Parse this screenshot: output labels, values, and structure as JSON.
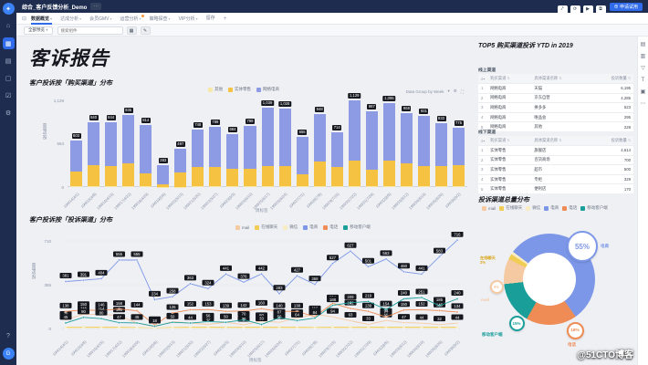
{
  "app": {
    "sidebar": {
      "items": [
        {
          "name": "logo",
          "glyph": "✦",
          "type": "logo"
        },
        {
          "name": "home",
          "glyph": "⌂"
        },
        {
          "name": "workspace",
          "glyph": "▦",
          "active": true
        },
        {
          "name": "documents",
          "glyph": "▤"
        },
        {
          "name": "datasets",
          "glyph": "▢"
        },
        {
          "name": "tasks",
          "glyph": "☑"
        },
        {
          "name": "settings",
          "glyph": "⚙"
        }
      ],
      "bottom": [
        {
          "name": "help",
          "glyph": "?"
        },
        {
          "name": "avatar",
          "glyph": "G",
          "type": "avatar"
        }
      ]
    },
    "header": {
      "title": "综合_客户反馈分析_Demo",
      "more_label": "⋯",
      "actions": [
        {
          "name": "share",
          "glyph": "⤤"
        },
        {
          "name": "refresh",
          "glyph": "⟳"
        },
        {
          "name": "present",
          "glyph": "▶"
        },
        {
          "name": "export",
          "glyph": "⧉"
        }
      ],
      "edit_button": {
        "icon": "⊕",
        "label": "申请试用"
      }
    },
    "tabs": {
      "menu_icon": "⊟",
      "items": [
        {
          "label": "数据概览",
          "active": true,
          "caret": "▾"
        },
        {
          "label": "达成分析",
          "caret": "▾"
        },
        {
          "label": "会员GMV",
          "caret": "▾"
        },
        {
          "label": "运营分析",
          "caret": "▾",
          "dot": true
        },
        {
          "label": "策略探查",
          "caret": "▾"
        },
        {
          "label": "VIP分析",
          "caret": "▾"
        },
        {
          "label": "留存"
        }
      ],
      "add_label": "+"
    },
    "filter_bar": {
      "scope_label": "全部预览",
      "scope_caret": "▾",
      "search_placeholder": "搜索组件",
      "calendar_icon": "▦",
      "edit_icon": "✎"
    }
  },
  "page": {
    "title": "客诉报告"
  },
  "watermark": {
    "text": "@51CTO博客"
  },
  "top5": {
    "title": "TOP5 购买渠道投诉 YTD in 2019",
    "online_label": "线上渠道",
    "offline_label": "线下渠道",
    "search_icon": "⌕",
    "sort_icon": "⇅",
    "columns": [
      "购买渠道",
      "具体渠道名称",
      "投诉数量"
    ],
    "online_rows": [
      [
        "1",
        "网络电商",
        "天猫",
        "6,195"
      ],
      [
        "2",
        "网络电商",
        "京东自营",
        "4,285"
      ],
      [
        "3",
        "网络电商",
        "拼多多",
        "523"
      ],
      [
        "4",
        "网络电商",
        "唯品会",
        "295"
      ],
      [
        "5",
        "网络电商",
        "其他",
        "228"
      ]
    ],
    "offline_rows": [
      [
        "1",
        "实体零售",
        "旗舰店",
        "4,614"
      ],
      [
        "2",
        "实体零售",
        "百货商场",
        "700"
      ],
      [
        "3",
        "实体零售",
        "超市",
        "500"
      ],
      [
        "4",
        "实体零售",
        "专柜",
        "329"
      ],
      [
        "5",
        "实体零售",
        "便利店",
        "170"
      ]
    ]
  },
  "chart_data": [
    {
      "type": "bar",
      "stacked": true,
      "title": "客户投诉按「购买渠道」分布",
      "xlabel": "周标签",
      "ylabel": "投诉数量",
      "ylim": [
        0,
        1129
      ],
      "yticks": [
        0,
        564,
        1129
      ],
      "grid": false,
      "legend_position": "top-center",
      "controls": {
        "group_label": "Data Group by Week",
        "caret": "▾",
        "settings_icon": "⚙",
        "expand_icon": "⛶"
      },
      "categories": [
        "19W14(4/1)",
        "19W15(4/8)",
        "19W16(4/15)",
        "19W17(4/22)",
        "19W18(4/29)",
        "19W19(5/6)",
        "19W20(5/13)",
        "19W21(5/20)",
        "19W22(5/27)",
        "19W23(6/3)",
        "19W24(6/10)",
        "19W25(6/17)",
        "19W26(6/24)",
        "19W27(7/1)",
        "19W28(7/8)",
        "19W29(7/15)",
        "19W30(7/22)",
        "19W31(7/29)",
        "19W32(8/5)",
        "19W33(8/12)",
        "19W34(8/19)",
        "19W35(8/26)",
        "19W36(9/2)"
      ],
      "series": [
        {
          "name": "其他",
          "color": "#f7e8a9",
          "values": [
            8,
            8,
            8,
            8,
            8,
            5,
            6,
            8,
            8,
            8,
            8,
            9,
            9,
            7,
            8,
            8,
            9,
            9,
            9,
            9,
            8,
            8,
            8
          ]
        },
        {
          "name": "实体零售",
          "color": "#f5c242",
          "values": [
            195,
            280,
            262,
            300,
            175,
            30,
            190,
            255,
            250,
            230,
            230,
            270,
            265,
            160,
            320,
            255,
            330,
            215,
            330,
            300,
            270,
            265,
            280
          ]
        },
        {
          "name": "网络电商",
          "color": "#8d9ae4",
          "values": [
            400,
            552,
            574,
            627,
            631,
            248,
            301,
            485,
            531,
            446,
            561,
            760,
            754,
            488,
            620,
            451,
            790,
            763,
            756,
            659,
            653,
            560,
            487
          ]
        }
      ],
      "totals": [
        603,
        840,
        844,
        935,
        814,
        283,
        497,
        748,
        789,
        684,
        799,
        1039,
        1028,
        655,
        948,
        714,
        1129,
        987,
        1095,
        968,
        931,
        833,
        775
      ]
    },
    {
      "type": "line",
      "title": "客户投诉按「投诉渠道」分布",
      "xlabel": "周标签",
      "ylabel": "投诉数量",
      "ylim": [
        0,
        716
      ],
      "yticks": [
        0,
        355,
        710
      ],
      "legend_position": "top-right",
      "categories": [
        "19W14(4/1)",
        "19W15(4/8)",
        "19W16(4/15)",
        "19W17(4/22)",
        "19W18(4/29)",
        "19W19(5/6)",
        "19W20(5/13)",
        "19W21(5/20)",
        "19W22(5/27)",
        "19W23(6/3)",
        "19W24(6/10)",
        "19W25(6/17)",
        "19W26(6/24)",
        "19W27(7/1)",
        "19W28(7/8)",
        "19W29(7/15)",
        "19W30(7/22)",
        "19W31(7/29)",
        "19W32(8/5)",
        "19W33(8/12)",
        "19W34(8/19)",
        "19W35(8/26)",
        "19W36(9/2)"
      ],
      "series": [
        {
          "name": "mail",
          "color": "#f5c9a2",
          "labels": true,
          "values": [
            70,
            116,
            114,
            105,
            45,
            15,
            56,
            44,
            33,
            50,
            30,
            60,
            50,
            85,
            116,
            94,
            63,
            33,
            65,
            47,
            44,
            32,
            44
          ]
        },
        {
          "name": "在线聊天",
          "color": "#f1cd55",
          "labels": false,
          "values": [
            10,
            12,
            11,
            10,
            8,
            3,
            9,
            10,
            10,
            11,
            10,
            11,
            10,
            10,
            9,
            11,
            12,
            11,
            10,
            11,
            11,
            10,
            11
          ]
        },
        {
          "name": "微信",
          "color": "#f7ecc3",
          "labels": false,
          "values": [
            4,
            5,
            5,
            4,
            4,
            2,
            4,
            4,
            4,
            5,
            4,
            5,
            4,
            4,
            4,
            5,
            5,
            5,
            4,
            5,
            5,
            4,
            5
          ]
        },
        {
          "name": "电商",
          "color": "#7d97e8",
          "labels": true,
          "values": [
            381,
            391,
            404,
            555,
            555,
            234,
            258,
            363,
            324,
            441,
            376,
            442,
            283,
            427,
            358,
            527,
            627,
            501,
            563,
            460,
            441,
            583,
            716
          ]
        },
        {
          "name": "电话",
          "color": "#ef8b55",
          "labels": true,
          "values": [
            138,
            150,
            146,
            158,
            144,
            28,
            126,
            152,
            153,
            139,
            142,
            160,
            140,
            138,
            96,
            204,
            162,
            139,
            94,
            150,
            152,
            145,
            134
          ]
        },
        {
          "name": "移动客户端",
          "color": "#1a9e9a",
          "labels": true,
          "values": [
            45,
            90,
            80,
            47,
            45,
            18,
            50,
            44,
            56,
            50,
            70,
            33,
            87,
            64,
            84,
            188,
            209,
            219,
            154,
            240,
            251,
            185,
            240
          ]
        }
      ]
    },
    {
      "type": "pie",
      "donut": true,
      "title": "投诉渠道总量分布",
      "legend": [
        "mail",
        "在线聊天",
        "微信",
        "电商",
        "电话",
        "移动客户端"
      ],
      "slices": [
        {
          "label": "电商",
          "pct": 55,
          "color": "#7d97e8"
        },
        {
          "label": "电话",
          "pct": 18,
          "color": "#ef8b55"
        },
        {
          "label": "移动客户端",
          "pct": 15,
          "color": "#1a9e9a"
        },
        {
          "label": "mail",
          "pct": 9,
          "color": "#f5c9a2"
        },
        {
          "label": "在线聊天",
          "pct": 2,
          "color": "#f1cd55"
        },
        {
          "label": "微信",
          "pct": 1,
          "color": "#f7ecc3"
        }
      ]
    }
  ]
}
